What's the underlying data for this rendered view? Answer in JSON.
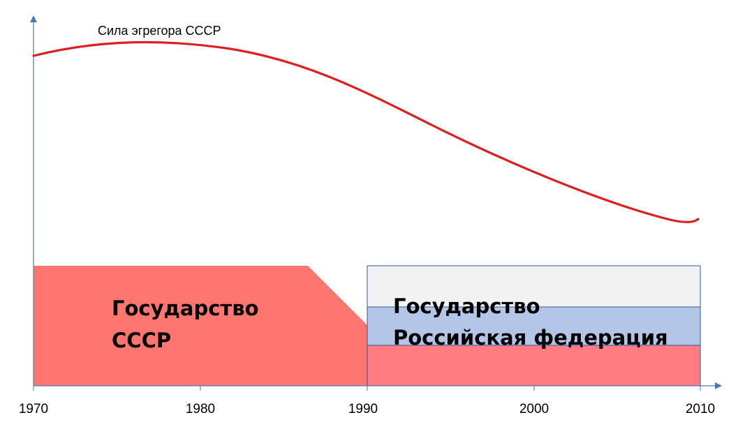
{
  "curve": {
    "label": "Сила эгрегора СССР",
    "color": "#dd1f1f"
  },
  "x_axis": {
    "ticks": [
      "1970",
      "1980",
      "1990",
      "2000",
      "2010"
    ],
    "color": "#4a78b8"
  },
  "ussr_block": {
    "line1": "Государство",
    "line2": "СССР",
    "color": "#ff7670"
  },
  "rf_block": {
    "line1": "Государство",
    "line2": "Российская федерация",
    "colors": {
      "top": "#f2f2f2",
      "middle": "#b4c6e7",
      "bottom": "#ff7c80",
      "border": "#2f5597"
    }
  }
}
